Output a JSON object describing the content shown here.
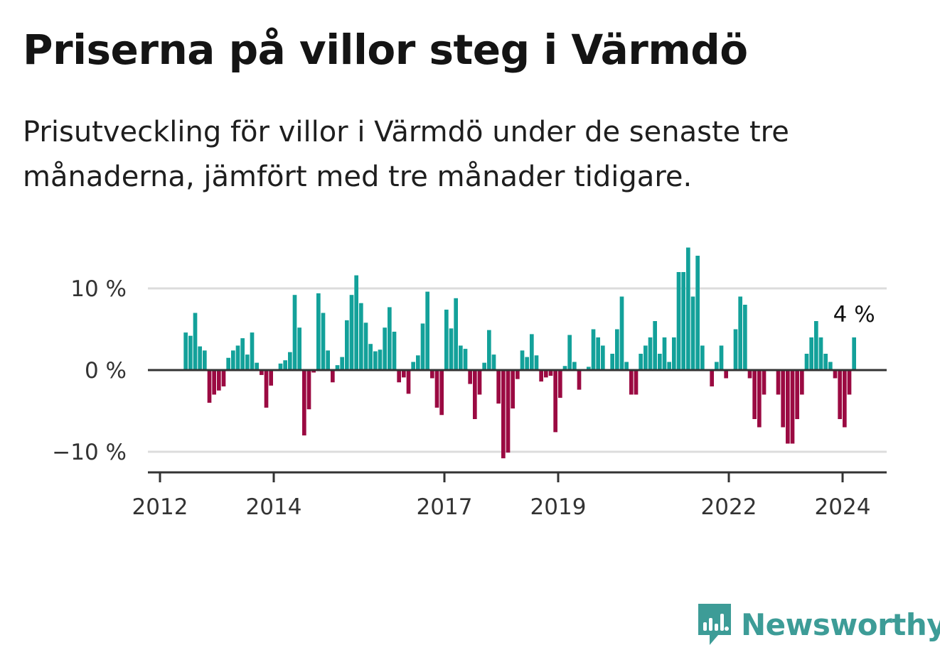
{
  "title": "Priserna på villor steg i Värmdö",
  "subtitle": "Prisutveckling för villor i Värmdö under de senaste tre månaderna, jämfört med tre månader tidigare.",
  "brand": {
    "name": "Newsworthy"
  },
  "colors": {
    "positive": "#13a19a",
    "negative": "#9b0a42",
    "grid": "#dcdcdc",
    "axis": "#333333",
    "brand": "#3d9c97"
  },
  "chart_data": {
    "type": "bar",
    "x_start": "2012-06",
    "x_step": "month",
    "ylabel": "",
    "yticks": [
      10,
      0,
      -10
    ],
    "ytick_labels": [
      "10 %",
      "0 %",
      "−10 %"
    ],
    "xticks": [
      "2012",
      "2014",
      "2017",
      "2019",
      "2022",
      "2024"
    ],
    "ylim": [
      -12,
      15
    ],
    "annotation": "4 %",
    "values": [
      4.6,
      4.2,
      7.0,
      2.9,
      2.4,
      -4.0,
      -3.0,
      -2.5,
      -2.0,
      1.5,
      2.4,
      3.0,
      3.9,
      1.9,
      4.6,
      0.9,
      -0.6,
      -4.6,
      -1.9,
      0.0,
      0.8,
      1.2,
      2.2,
      9.2,
      5.2,
      -8.0,
      -4.8,
      -0.3,
      9.4,
      7.0,
      2.4,
      -1.5,
      0.6,
      1.6,
      6.1,
      9.2,
      11.6,
      8.2,
      5.8,
      3.2,
      2.3,
      2.5,
      5.2,
      7.7,
      4.7,
      -1.5,
      -0.9,
      -2.9,
      1.0,
      1.8,
      5.7,
      9.6,
      -1.0,
      -4.6,
      -5.5,
      7.4,
      5.1,
      8.8,
      3.0,
      2.6,
      -1.7,
      -6.0,
      -3.0,
      0.9,
      4.9,
      1.9,
      -4.1,
      -10.8,
      -10.1,
      -4.7,
      -1.1,
      2.4,
      1.6,
      4.4,
      1.8,
      -1.4,
      -0.9,
      -0.7,
      -7.6,
      -3.4,
      0.5,
      4.3,
      1.0,
      -2.4,
      -0.1,
      0.4,
      5.0,
      4.0,
      3.0,
      0.0,
      2.0,
      5.0,
      9.0,
      1.0,
      -3.0,
      -3.0,
      2.0,
      3.0,
      4.0,
      6.0,
      2.0,
      4.0,
      1.0,
      4.0,
      12.0,
      12.0,
      15.0,
      9.0,
      14.0,
      3.0,
      0.0,
      -2.0,
      1.0,
      3.0,
      -1.0,
      0.0,
      5.0,
      9.0,
      8.0,
      -1.0,
      -6.0,
      -7.0,
      -3.0,
      0.0,
      0.0,
      -3.0,
      -7.0,
      -9.0,
      -9.0,
      -6.0,
      -3.0,
      2.0,
      4.0,
      6.0,
      4.0,
      2.0,
      1.0,
      -1.0,
      -6.0,
      -7.0,
      -3.0,
      4.0
    ]
  }
}
